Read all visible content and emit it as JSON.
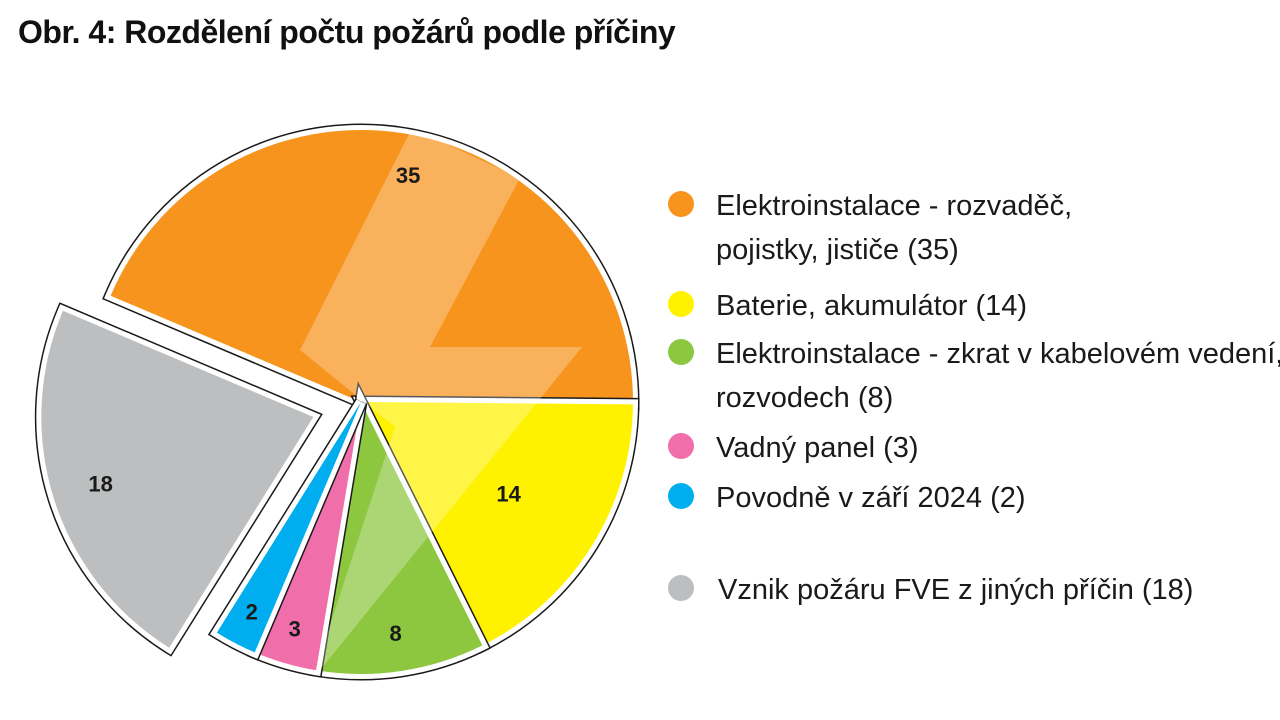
{
  "title": "Obr. 4: Rozdělení počtu požárů podle příčiny",
  "chart_data": {
    "type": "pie",
    "title": "Obr. 4: Rozdělení počtu požárů podle příčiny",
    "slices": [
      {
        "label": "Elektroinstalace - rozvaděč, pojistky, jističe (35)",
        "value": 35,
        "value_label": "35",
        "color": "#f7941d"
      },
      {
        "label": "Baterie, akumulátor (14)",
        "value": 14,
        "value_label": "14",
        "color": "#fff200"
      },
      {
        "label": "Elektroinstalace - zkrat v kabelovém vedení, rozvodech (8)",
        "value": 8,
        "value_label": "8",
        "color": "#8dc63f"
      },
      {
        "label": "Vadný panel (3)",
        "value": 3,
        "value_label": "3",
        "color": "#f06eaa"
      },
      {
        "label": "Povodně v září 2024 (2)",
        "value": 2,
        "value_label": "2",
        "color": "#00aeef"
      },
      {
        "label": "Vznik požáru FVE z jiných příčin (18)",
        "value": 18,
        "value_label": "18",
        "color": "#bcbec0",
        "exploded": true
      }
    ],
    "legend_position": "right"
  }
}
